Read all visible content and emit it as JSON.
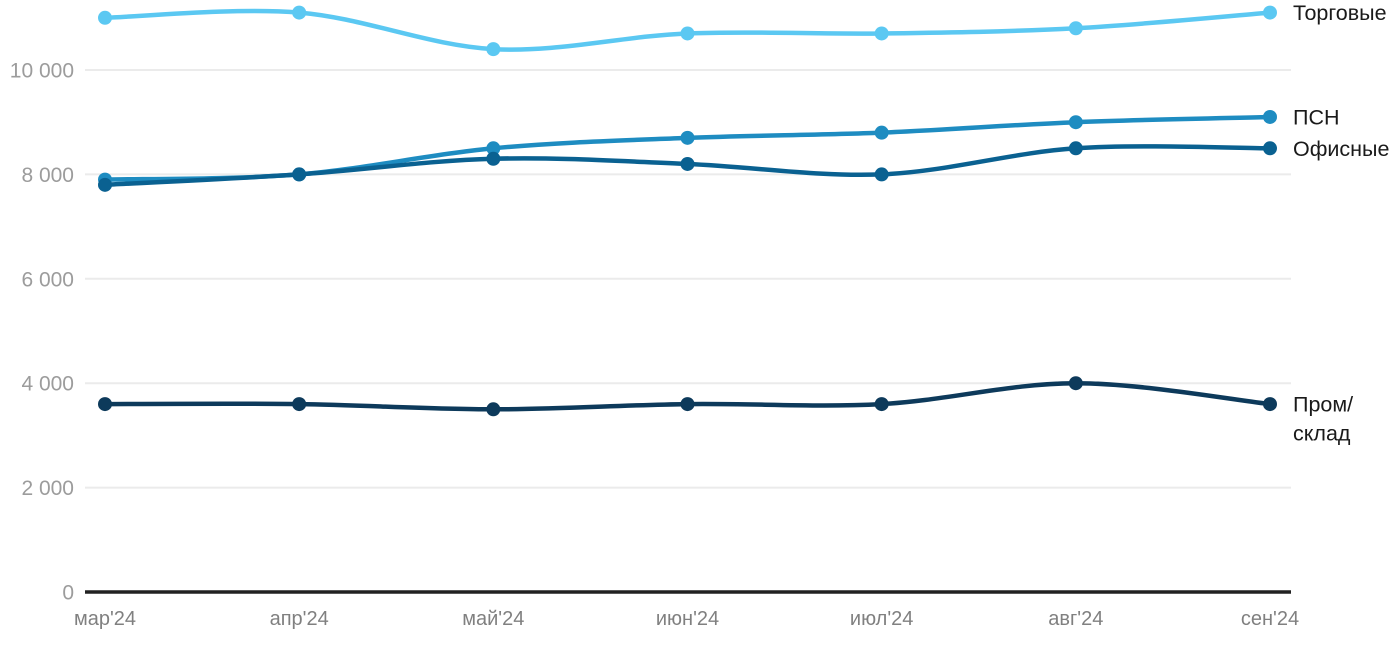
{
  "chart_data": {
    "type": "line",
    "title": "",
    "categories": [
      "мар'24",
      "апр'24",
      "май'24",
      "июн'24",
      "июл'24",
      "авг'24",
      "сен'24"
    ],
    "series": [
      {
        "name": "Торговые",
        "end_label_lines": [
          "Торговые"
        ],
        "color": "#5BC8F2",
        "values": [
          11000,
          11100,
          10400,
          10700,
          10700,
          10800,
          11100
        ]
      },
      {
        "name": "ПСН",
        "end_label_lines": [
          "ПСН"
        ],
        "color": "#1E8CC1",
        "values": [
          7900,
          8000,
          8500,
          8700,
          8800,
          9000,
          9100
        ]
      },
      {
        "name": "Офисные",
        "end_label_lines": [
          "Офисные"
        ],
        "color": "#0A6191",
        "values": [
          7800,
          8000,
          8300,
          8200,
          8000,
          8500,
          8500
        ]
      },
      {
        "name": "Пром/склад",
        "end_label_lines": [
          "Пром/",
          "склад"
        ],
        "color": "#0D3A5B",
        "values": [
          3600,
          3600,
          3500,
          3600,
          3600,
          4000,
          3600
        ]
      }
    ],
    "y_ticks": [
      0,
      2000,
      4000,
      6000,
      8000,
      10000
    ],
    "y_tick_labels": [
      "0",
      "2 000",
      "4 000",
      "6 000",
      "8 000",
      "10 000"
    ],
    "ylim": [
      0,
      11600
    ],
    "xlabel": "",
    "ylabel": "",
    "grid": "horizontal",
    "legend_position": "right-end-labels",
    "colors": {
      "grid_line": "#EBEBEB",
      "axis_line": "#212121",
      "y_tick_text": "#9C9C9C",
      "x_tick_text": "#808080",
      "end_label_text": "#1A1A1A",
      "background": "#FFFFFF"
    }
  }
}
